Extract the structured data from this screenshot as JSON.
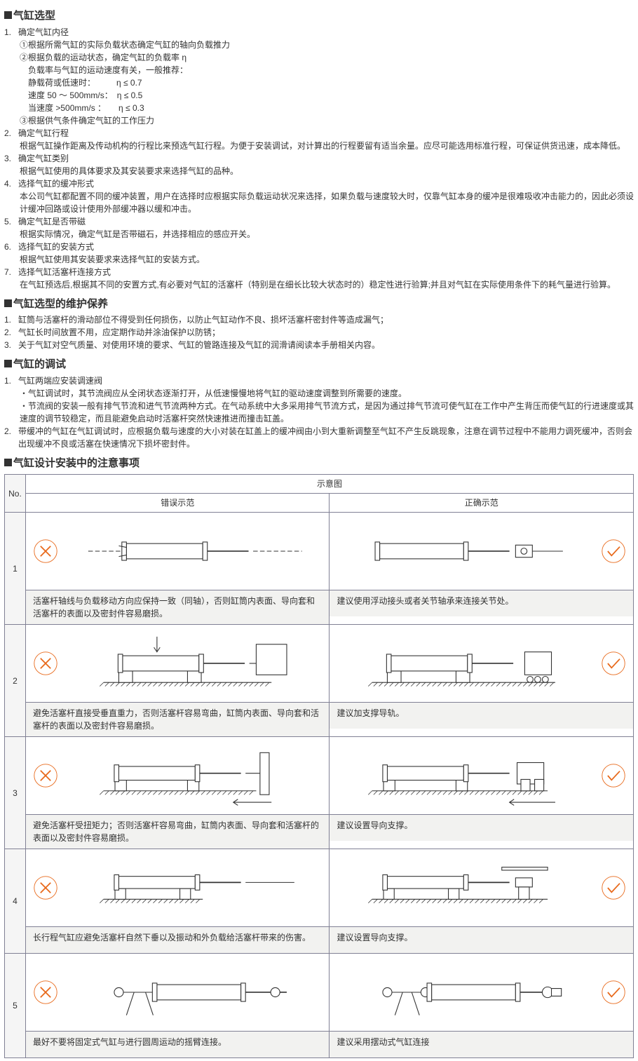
{
  "s1": {
    "title": "气缸选型",
    "items": [
      {
        "n": "1.",
        "t": "确定气缸内径",
        "sub": [
          "①根据所需气缸的实际负载状态确定气缸的轴向负载推力",
          "②根据负载的运动状态，确定气缸的负载率  η",
          "　负载率与气缸的运动速度有关，一般推荐：",
          "　静载荷或低速时：　　　η ≤ 0.7",
          "　速度 50 ～ 500mm/s：　η ≤ 0.5",
          "　当速度 >500mm/s ：　　η ≤ 0.3",
          "③根据供气条件确定气缸的工作压力"
        ]
      },
      {
        "n": "2.",
        "t": "确定气缸行程",
        "sub": [
          "根据气缸操作距离及传动机构的行程比来预选气缸行程。为便于安装调试，对计算出的行程要留有适当余量。应尽可能选用标准行程，可保证供货迅速，成本降低。"
        ]
      },
      {
        "n": "3.",
        "t": "确定气缸类别",
        "sub": [
          "根据气缸使用的具体要求及其安装要求来选择气缸的品种。"
        ]
      },
      {
        "n": "4.",
        "t": "选择气缸的缓冲形式",
        "sub": [
          "本公司气缸都配置不同的缓冲装置，用户在选择时应根据实际负载运动状况来选择，如果负载与速度较大时，仅靠气缸本身的缓冲是很难吸收冲击能力的，因此必须设计缓冲回路或设计使用外部缓冲器以缓和冲击。"
        ]
      },
      {
        "n": "5.",
        "t": "确定气缸是否带磁",
        "sub": [
          "根据实际情况，确定气缸是否带磁石，并选择相应的感应开关。"
        ]
      },
      {
        "n": "6.",
        "t": "选择气缸的安装方式",
        "sub": [
          "根据气缸使用其安装要求来选择气缸的安装方式。"
        ]
      },
      {
        "n": "7.",
        "t": "选择气缸活塞杆连接方式",
        "sub": [
          "在气缸预选后,根据其不同的安置方式,有必要对气缸的活塞杆（特别是在细长比较大状态时的）稳定性进行验算;并且对气缸在实际使用条件下的耗气量进行验算。"
        ]
      }
    ]
  },
  "s2": {
    "title": "气缸选型的维护保养",
    "items": [
      {
        "n": "1.",
        "t": "缸筒与活塞杆的滑动部位不得受到任何损伤，以防止气缸动作不良、损坏活塞杆密封件等造成漏气；"
      },
      {
        "n": "2.",
        "t": "气缸长时间放置不用，应定期作动并涂油保护以防锈；"
      },
      {
        "n": "3.",
        "t": "关于气缸对空气质量、对使用环境的要求、气缸的管路连接及气缸的润滑请阅读本手册相关内容。"
      }
    ]
  },
  "s3": {
    "title": "气缸的调试",
    "items": [
      {
        "n": "1.",
        "t": "气缸两端应安装调速阀",
        "sub": [
          "・气缸调试时，其节流阀应从全闭状态逐渐打开，从低速慢慢地将气缸的驱动速度调整到所需要的速度。",
          "・节流阀的安装一般有排气节流和进气节流两种方式。在气动系统中大多采用排气节流方式，是因为通过排气节流可使气缸在工作中产生背压而使气缸的行进速度或其速度的调节较稳定，而且能避免启动时活塞杆突然快速推进而撞击缸盖。"
        ]
      },
      {
        "n": "2.",
        "t": "带缓冲的气缸在气缸调试时，应根据负载与速度的大小对装在缸盖上的缓冲阀由小到大重新调整至气缸不产生反跳现象，注意在调节过程中不能用力调死缓冲，否则会出现缓冲不良或活塞在快速情况下损坏密封件。"
      }
    ]
  },
  "s4": {
    "title": "气缸设计安装中的注意事项",
    "headers": {
      "no": "No.",
      "diag": "示意图",
      "wrong": "错误示范",
      "correct": "正确示范"
    },
    "rows": [
      {
        "no": "1",
        "wrong_cap": "活塞杆轴线与负载移动方向应保持一致（同轴），否则缸筒内表面、导向套和活塞杆的表面以及密封件容易磨损。",
        "right_cap": "建议使用浮动接头或者关节轴承来连接关节处。"
      },
      {
        "no": "2",
        "wrong_cap": "避免活塞杆直接受垂直重力，否则活塞杆容易弯曲，缸筒内表面、导向套和活塞杆的表面以及密封件容易磨损。",
        "right_cap": "建议加支撑导轨。"
      },
      {
        "no": "3",
        "wrong_cap": "避免活塞杆受扭矩力；否则活塞杆容易弯曲，缸筒内表面、导向套和活塞杆的表面以及密封件容易磨损。",
        "right_cap": "建议设置导向支撑。"
      },
      {
        "no": "4",
        "wrong_cap": "长行程气缸应避免活塞杆自然下垂以及振动和外负载给活塞杆带来的伤害。",
        "right_cap": "建议设置导向支撑。"
      },
      {
        "no": "5",
        "wrong_cap": "最好不要将固定式气缸与进行圆周运动的摇臂连接。",
        "right_cap": "建议采用摆动式气缸连接"
      }
    ]
  },
  "colors": {
    "x": "#e8691b",
    "check": "#e8691b",
    "border": "#808094",
    "line": "#333333",
    "hatch": "#555555"
  }
}
